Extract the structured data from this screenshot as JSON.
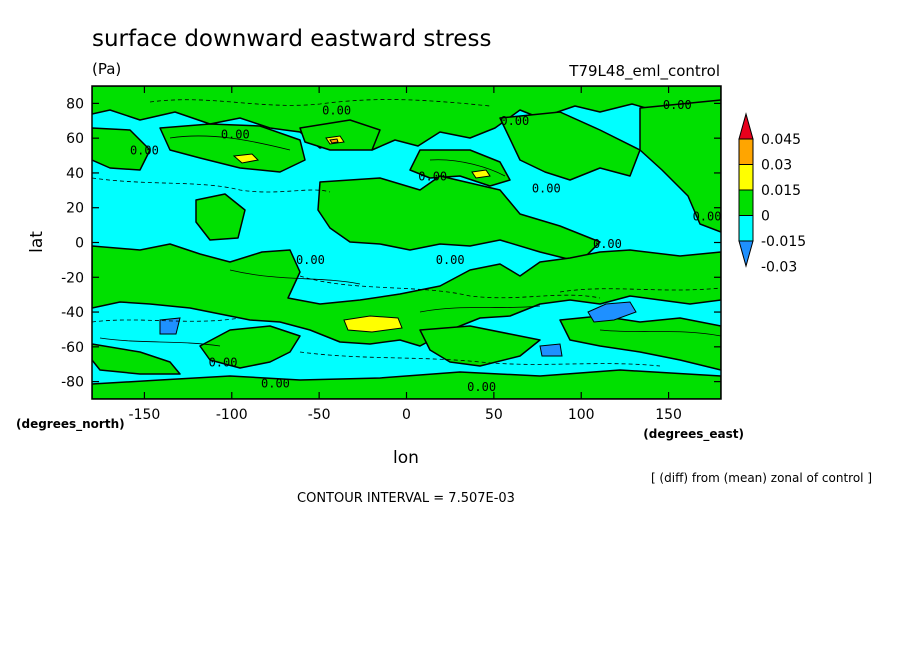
{
  "chart_data": {
    "type": "heatmap",
    "title": "surface downward eastward stress",
    "units": "(Pa)",
    "run_name": "T79L48_eml_control",
    "xlabel": "lon",
    "ylabel": "lat",
    "x_units": "(degrees_east)",
    "y_units": "(degrees_north)",
    "xlim": [
      -180,
      180
    ],
    "ylim": [
      -90,
      90
    ],
    "x_ticks": [
      -150,
      -100,
      -50,
      0,
      50,
      100,
      150
    ],
    "y_ticks": [
      -80,
      -60,
      -40,
      -20,
      0,
      20,
      40,
      60,
      80
    ],
    "x_tick_labels": [
      "-150",
      "-100",
      "-50",
      "0",
      "50",
      "100",
      "150"
    ],
    "y_tick_labels": [
      "-80",
      "-60",
      "-40",
      "-20",
      "0",
      "20",
      "40",
      "60",
      "80"
    ],
    "note": "[ (diff) from (mean) zonal of control ]",
    "contour_interval": "CONTOUR INTERVAL = 7.507E-03",
    "colorbar": {
      "labels": [
        "0.045",
        "0.03",
        "0.015",
        "0",
        "-0.015",
        "-0.03"
      ],
      "colors": [
        "#e8001c",
        "#ffa500",
        "#ffff00",
        "#00e000",
        "#00ffff",
        "#1e90ff"
      ]
    },
    "colors": {
      "background": "#00ffff",
      "positive": "#00e000",
      "high": "#ffff00",
      "higher": "#ffa500",
      "negative": "#1e90ff"
    },
    "contour_labels": [
      {
        "text": "0.00",
        "lon": -40,
        "lat": 76
      },
      {
        "text": "0.00",
        "lon": 62,
        "lat": 70
      },
      {
        "text": "0.00",
        "lon": 155,
        "lat": 79
      },
      {
        "text": "0.00",
        "lon": -98,
        "lat": 62
      },
      {
        "text": "0.00",
        "lon": -150,
        "lat": 53
      },
      {
        "text": "0.00",
        "lon": 15,
        "lat": 38
      },
      {
        "text": "0.00",
        "lon": 80,
        "lat": 31
      },
      {
        "text": "0.00",
        "lon": 172,
        "lat": 15
      },
      {
        "text": "0.00",
        "lon": 115,
        "lat": -1
      },
      {
        "text": "0.00",
        "lon": -55,
        "lat": -10
      },
      {
        "text": "0.00",
        "lon": 25,
        "lat": -10
      },
      {
        "text": "0.00",
        "lon": -105,
        "lat": -69
      },
      {
        "text": "0.00",
        "lon": -75,
        "lat": -81
      },
      {
        "text": "0.00",
        "lon": 43,
        "lat": -83
      }
    ]
  }
}
